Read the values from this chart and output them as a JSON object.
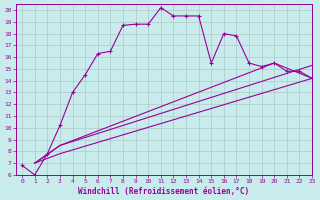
{
  "xlabel": "Windchill (Refroidissement éolien,°C)",
  "bg_color": "#c8ecec",
  "grid_color": "#b0c8c8",
  "line_color": "#990099",
  "xlim": [
    -0.5,
    23
  ],
  "ylim": [
    6,
    20.5
  ],
  "xticks": [
    0,
    1,
    2,
    3,
    4,
    5,
    6,
    7,
    8,
    9,
    10,
    11,
    12,
    13,
    14,
    15,
    16,
    17,
    18,
    19,
    20,
    21,
    22,
    23
  ],
  "yticks": [
    6,
    7,
    8,
    9,
    10,
    11,
    12,
    13,
    14,
    15,
    16,
    17,
    18,
    19,
    20
  ],
  "curve1_x": [
    0,
    1,
    2,
    3,
    4,
    5,
    6,
    7,
    8,
    9,
    10,
    11,
    12,
    13,
    14,
    15,
    16,
    17,
    18,
    19,
    20,
    21,
    22,
    23
  ],
  "curve1_y": [
    6.8,
    6.0,
    7.8,
    10.2,
    13.0,
    14.5,
    16.3,
    16.5,
    18.7,
    18.8,
    18.8,
    20.2,
    19.5,
    19.5,
    19.5,
    15.5,
    18.0,
    17.8,
    15.5,
    15.2,
    15.5,
    14.8,
    14.8,
    14.2
  ],
  "curve2_x": [
    1,
    3,
    23
  ],
  "curve2_y": [
    7.0,
    7.8,
    14.2
  ],
  "curve3_x": [
    1,
    3,
    23
  ],
  "curve3_y": [
    7.0,
    8.5,
    15.3
  ],
  "curve4_x": [
    1,
    3,
    20,
    23
  ],
  "curve4_y": [
    7.0,
    8.5,
    15.5,
    14.2
  ]
}
